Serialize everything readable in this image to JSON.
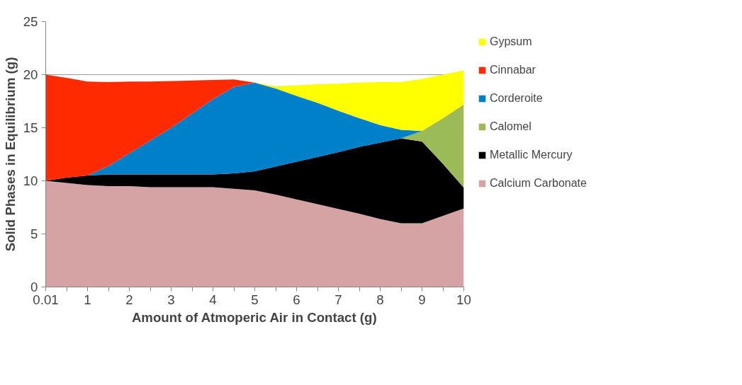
{
  "chart_data": {
    "type": "area",
    "stacked": true,
    "xlabel": "Amount of Atmoperic Air in Contact (g)",
    "ylabel": "Solid Phases in Equilibrium (g)",
    "categories": [
      "0.01",
      null,
      "1",
      null,
      "2",
      null,
      "3",
      null,
      "4",
      null,
      "5",
      null,
      "6",
      null,
      "7",
      null,
      "8",
      null,
      "9",
      null,
      "10"
    ],
    "series": [
      {
        "name": "Calcium Carbonate",
        "color": "#d5a3a3",
        "values": [
          10.0,
          9.8,
          9.6,
          9.5,
          9.5,
          9.4,
          9.4,
          9.4,
          9.4,
          9.25,
          9.1,
          8.7,
          8.25,
          7.8,
          7.35,
          6.9,
          6.4,
          6.0,
          6.0,
          6.7,
          7.4
        ]
      },
      {
        "name": "Metallic Mercury",
        "color": "#000000",
        "values": [
          0,
          0.5,
          0.9,
          1.1,
          1.1,
          1.2,
          1.2,
          1.2,
          1.2,
          1.45,
          1.8,
          2.65,
          3.55,
          4.45,
          5.35,
          6.3,
          7.2,
          8.0,
          7.7,
          4.9,
          1.95
        ]
      },
      {
        "name": "Calomel",
        "color": "#9bbb59",
        "values": [
          0,
          0,
          0,
          0,
          0,
          0,
          0,
          0,
          0,
          0,
          0,
          0,
          0,
          0,
          0,
          0,
          0,
          0,
          1.0,
          4.3,
          7.85
        ]
      },
      {
        "name": "Corderoite",
        "color": "#0080c8",
        "values": [
          0,
          0,
          0,
          0.8,
          2.0,
          3.2,
          4.4,
          5.75,
          7.1,
          8.15,
          8.35,
          7.35,
          6.2,
          5.1,
          3.9,
          2.7,
          1.65,
          0.8,
          0,
          0,
          0
        ]
      },
      {
        "name": "Cinnabar",
        "color": "#ff2a00",
        "values": [
          10.0,
          9.4,
          8.85,
          7.9,
          6.75,
          5.55,
          4.4,
          3.1,
          1.8,
          0.7,
          0,
          0,
          0,
          0,
          0,
          0,
          0,
          0,
          0,
          0,
          0
        ]
      },
      {
        "name": "Gypsum",
        "color": "#ffff00",
        "values": [
          0,
          0,
          0,
          0,
          0,
          0,
          0,
          0,
          0,
          0,
          0,
          0.2,
          1.0,
          1.75,
          2.55,
          3.35,
          4.05,
          4.5,
          4.9,
          4.1,
          3.2
        ]
      }
    ],
    "ylim": [
      0,
      25
    ],
    "yticks": [
      0,
      5,
      10,
      15,
      20,
      25
    ],
    "grid": "y",
    "legend": "right"
  }
}
